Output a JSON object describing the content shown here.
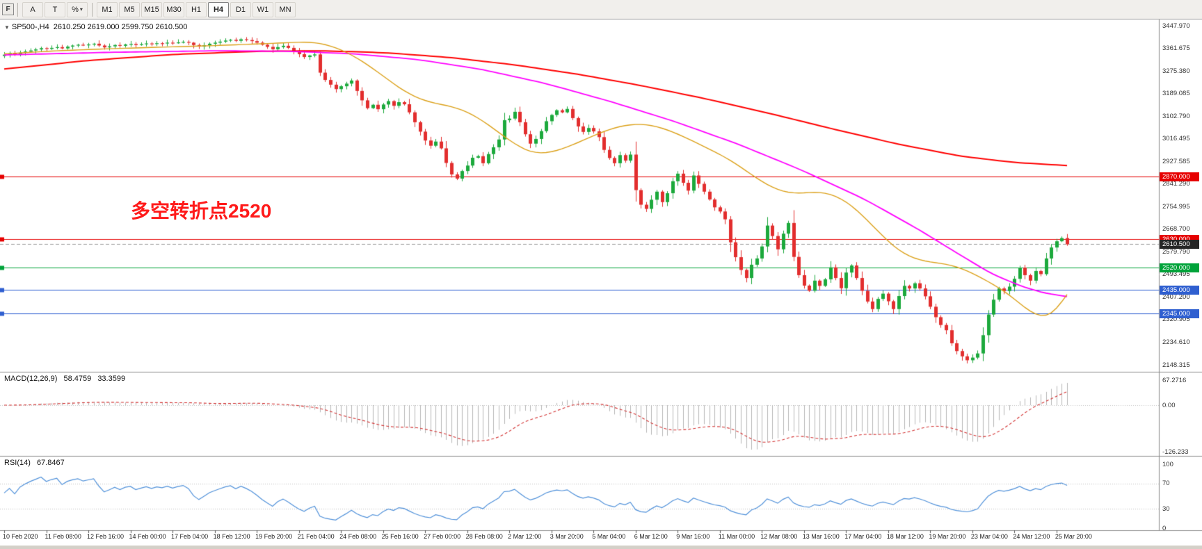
{
  "window": {
    "left_strip_label": "F"
  },
  "toolbar": {
    "tools": [
      {
        "label": "A",
        "name": "annotation-tool"
      },
      {
        "label": "T",
        "name": "text-tool"
      },
      {
        "label": "%",
        "name": "line-studies-tool",
        "caret": "▾"
      }
    ],
    "timeframes": [
      "M1",
      "M5",
      "M15",
      "M30",
      "H1",
      "H4",
      "D1",
      "W1",
      "MN"
    ],
    "active_timeframe": "H4"
  },
  "chart": {
    "collapse_icon": "▼",
    "title": "SP500-,H4",
    "ohlc": "2610.250 2619.000 2599.750 2610.500",
    "annotation": {
      "text": "多空转折点2520",
      "color": "#ff1a1a"
    },
    "y_axis_labels": [
      "3447.970",
      "3361.675",
      "3275.380",
      "3189.085",
      "3102.790",
      "3016.495",
      "2927.585",
      "2841.290",
      "2754.995",
      "2668.700",
      "2579.790",
      "2493.495",
      "2407.200",
      "2320.905",
      "2234.610",
      "2148.315"
    ],
    "levels": [
      {
        "value": 2870,
        "label": "2870.000",
        "color": "#e60000"
      },
      {
        "value": 2630,
        "label": "2630.000",
        "color": "#e60000"
      },
      {
        "value": 2520,
        "label": "2520.000",
        "color": "#00a33a"
      },
      {
        "value": 2435,
        "label": "2435.000",
        "color": "#2f5fd0"
      },
      {
        "value": 2345,
        "label": "2345.000",
        "color": "#2f5fd0"
      }
    ],
    "current_price": {
      "value": 2610.5,
      "label": "2610.500",
      "badge_color": "#262626"
    }
  },
  "chart_data": {
    "type": "candlestick",
    "symbol": "SP500-",
    "timeframe": "H4",
    "visible_price_range": [
      2148.315,
      3447.97
    ],
    "open_first": 3332,
    "up_color": "#1ca93c",
    "down_color": "#e22e2e",
    "closes": [
      3337,
      3342,
      3339,
      3345,
      3349,
      3353,
      3357,
      3362,
      3359,
      3363,
      3366,
      3361,
      3368,
      3372,
      3375,
      3373,
      3376,
      3379,
      3372,
      3365,
      3369,
      3374,
      3371,
      3376,
      3378,
      3374,
      3377,
      3380,
      3378,
      3381,
      3380,
      3383,
      3381,
      3384,
      3386,
      3383,
      3374,
      3368,
      3373,
      3379,
      3383,
      3387,
      3391,
      3394,
      3390,
      3396,
      3393,
      3389,
      3383,
      3375,
      3367,
      3358,
      3366,
      3371,
      3363,
      3352,
      3339,
      3328,
      3334,
      3338,
      3268,
      3240,
      3222,
      3205,
      3216,
      3226,
      3238,
      3198,
      3162,
      3132,
      3145,
      3128,
      3146,
      3159,
      3141,
      3155,
      3147,
      3116,
      3078,
      3042,
      3008,
      2988,
      3004,
      2978,
      2922,
      2878,
      2862,
      2891,
      2912,
      2942,
      2948,
      2921,
      2956,
      2982,
      3012,
      3086,
      3092,
      3118,
      3078,
      3032,
      2996,
      3014,
      3044,
      3082,
      3106,
      3124,
      3116,
      3129,
      3094,
      3062,
      3041,
      3056,
      3043,
      3021,
      2972,
      2941,
      2921,
      2952,
      2931,
      2954,
      2818,
      2762,
      2746,
      2781,
      2812,
      2772,
      2806,
      2852,
      2881,
      2846,
      2816,
      2874,
      2842,
      2812,
      2782,
      2752,
      2736,
      2706,
      2618,
      2561,
      2512,
      2481,
      2532,
      2556,
      2602,
      2682,
      2642,
      2591,
      2651,
      2692,
      2562,
      2492,
      2452,
      2432,
      2471,
      2451,
      2476,
      2522,
      2481,
      2442,
      2502,
      2529,
      2481,
      2432,
      2391,
      2362,
      2401,
      2421,
      2392,
      2362,
      2412,
      2451,
      2441,
      2461,
      2441,
      2411,
      2371,
      2331,
      2301,
      2281,
      2231,
      2201,
      2181,
      2166,
      2176,
      2192,
      2262,
      2341,
      2398,
      2441,
      2431,
      2448,
      2478,
      2521,
      2492,
      2471,
      2508,
      2496,
      2556,
      2598,
      2622,
      2634,
      2610.5
    ],
    "moving_averages": [
      {
        "name": "ma-slow",
        "color": "#ff0000",
        "anchors": [
          [
            0,
            3282
          ],
          [
            0.08,
            3315
          ],
          [
            0.16,
            3338
          ],
          [
            0.24,
            3350
          ],
          [
            0.3,
            3352
          ],
          [
            0.36,
            3344
          ],
          [
            0.42,
            3326
          ],
          [
            0.48,
            3298
          ],
          [
            0.54,
            3262
          ],
          [
            0.6,
            3218
          ],
          [
            0.66,
            3168
          ],
          [
            0.72,
            3112
          ],
          [
            0.78,
            3052
          ],
          [
            0.84,
            2995
          ],
          [
            0.9,
            2948
          ],
          [
            0.95,
            2924
          ],
          [
            1,
            2912
          ]
        ]
      },
      {
        "name": "ma-medium",
        "color": "#ff00ff",
        "anchors": [
          [
            0,
            3336
          ],
          [
            0.1,
            3346
          ],
          [
            0.2,
            3352
          ],
          [
            0.27,
            3350
          ],
          [
            0.33,
            3340
          ],
          [
            0.39,
            3318
          ],
          [
            0.45,
            3280
          ],
          [
            0.51,
            3226
          ],
          [
            0.57,
            3158
          ],
          [
            0.63,
            3082
          ],
          [
            0.69,
            2995
          ],
          [
            0.75,
            2895
          ],
          [
            0.81,
            2782
          ],
          [
            0.86,
            2668
          ],
          [
            0.9,
            2568
          ],
          [
            0.93,
            2495
          ],
          [
            0.96,
            2445
          ],
          [
            0.98,
            2422
          ],
          [
            1,
            2410
          ]
        ]
      },
      {
        "name": "ma-fast",
        "color": "#dba018",
        "anchors": [
          [
            0,
            3340
          ],
          [
            0.05,
            3352
          ],
          [
            0.1,
            3360
          ],
          [
            0.15,
            3366
          ],
          [
            0.2,
            3372
          ],
          [
            0.25,
            3380
          ],
          [
            0.285,
            3386
          ],
          [
            0.3,
            3380
          ],
          [
            0.315,
            3360
          ],
          [
            0.33,
            3330
          ],
          [
            0.345,
            3290
          ],
          [
            0.36,
            3245
          ],
          [
            0.375,
            3200
          ],
          [
            0.39,
            3168
          ],
          [
            0.405,
            3150
          ],
          [
            0.42,
            3140
          ],
          [
            0.435,
            3120
          ],
          [
            0.45,
            3085
          ],
          [
            0.465,
            3040
          ],
          [
            0.48,
            2995
          ],
          [
            0.495,
            2962
          ],
          [
            0.51,
            2958
          ],
          [
            0.525,
            2975
          ],
          [
            0.54,
            3000
          ],
          [
            0.555,
            3028
          ],
          [
            0.57,
            3052
          ],
          [
            0.585,
            3068
          ],
          [
            0.6,
            3072
          ],
          [
            0.615,
            3062
          ],
          [
            0.63,
            3040
          ],
          [
            0.645,
            3012
          ],
          [
            0.66,
            2982
          ],
          [
            0.675,
            2952
          ],
          [
            0.69,
            2915
          ],
          [
            0.705,
            2872
          ],
          [
            0.72,
            2832
          ],
          [
            0.735,
            2808
          ],
          [
            0.75,
            2805
          ],
          [
            0.765,
            2812
          ],
          [
            0.78,
            2802
          ],
          [
            0.795,
            2768
          ],
          [
            0.81,
            2712
          ],
          [
            0.825,
            2648
          ],
          [
            0.84,
            2590
          ],
          [
            0.855,
            2556
          ],
          [
            0.87,
            2542
          ],
          [
            0.885,
            2536
          ],
          [
            0.9,
            2520
          ],
          [
            0.915,
            2492
          ],
          [
            0.93,
            2458
          ],
          [
            0.945,
            2420
          ],
          [
            0.955,
            2385
          ],
          [
            0.965,
            2352
          ],
          [
            0.975,
            2330
          ],
          [
            0.985,
            2335
          ],
          [
            0.993,
            2372
          ],
          [
            1,
            2418
          ]
        ]
      }
    ],
    "x_axis_labels": [
      "10 Feb 2020",
      "11 Feb 08:00",
      "12 Feb 16:00",
      "14 Feb 00:00",
      "17 Feb 04:00",
      "18 Feb 12:00",
      "19 Feb 20:00",
      "21 Feb 04:00",
      "24 Feb 08:00",
      "25 Feb 16:00",
      "27 Feb 00:00",
      "28 Feb 08:00",
      "2 Mar 12:00",
      "3 Mar 20:00",
      "5 Mar 04:00",
      "6 Mar 12:00",
      "9 Mar 16:00",
      "11 Mar 00:00",
      "12 Mar 08:00",
      "13 Mar 16:00",
      "17 Mar 04:00",
      "18 Mar 12:00",
      "19 Mar 20:00",
      "23 Mar 04:00",
      "24 Mar 12:00",
      "25 Mar 20:00"
    ]
  },
  "macd": {
    "label": "MACD(12,26,9)",
    "value_main": "58.4759",
    "value_signal": "33.3599",
    "fast": 12,
    "slow": 26,
    "signal": 9,
    "axis_labels": [
      "67.2716",
      "0.00",
      "-126.233"
    ],
    "histogram_color": "#b6b6b6",
    "signal_color": "#d23030"
  },
  "rsi": {
    "label": "RSI(14)",
    "period": 14,
    "value": "67.8467",
    "axis_labels": [
      "100",
      "70",
      "30",
      "0"
    ],
    "levels": [
      70,
      30
    ],
    "line_color": "#4f90d9"
  }
}
